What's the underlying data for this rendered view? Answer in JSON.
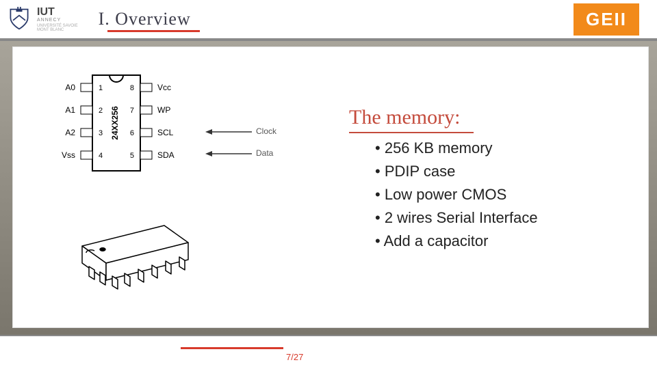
{
  "header": {
    "logo": {
      "big": "IUT",
      "sub": "ANNECY",
      "sub2": "UNIVERSITÉ SAVOIE",
      "sub3": "MONT BLANC"
    },
    "title": "I. Overview",
    "badge": "GEII"
  },
  "pinout": {
    "chip_label": "24XX256",
    "left": [
      {
        "name": "A0",
        "num": "1"
      },
      {
        "name": "A1",
        "num": "2"
      },
      {
        "name": "A2",
        "num": "3"
      },
      {
        "name": "Vss",
        "num": "4"
      }
    ],
    "right": [
      {
        "num": "8",
        "name": "Vcc"
      },
      {
        "num": "7",
        "name": "WP"
      },
      {
        "num": "6",
        "name": "SCL"
      },
      {
        "num": "5",
        "name": "SDA"
      }
    ],
    "arrows": [
      {
        "label": "Clock",
        "target": "SCL"
      },
      {
        "label": "Data",
        "target": "SDA"
      }
    ],
    "colors": {
      "body": "#000",
      "stroke": "#000",
      "text": "#000"
    }
  },
  "memory": {
    "title": "The memory:",
    "items": [
      "256 KB memory",
      "PDIP case",
      "Low power CMOS",
      "2 wires Serial Interface",
      "Add a capacitor"
    ],
    "title_color": "#c44b3c",
    "text_color": "#222",
    "title_fontsize": 30,
    "item_fontsize": 22
  },
  "footer": {
    "page": "7/27",
    "accent": "#d83a2b"
  }
}
